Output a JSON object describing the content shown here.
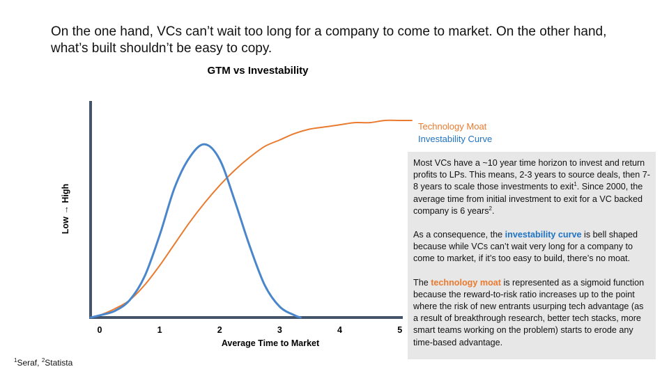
{
  "headline": "On the one hand, VCs can’t wait too long for a company to come to market. On the other hand, what’s built shouldn’t be easy to copy.",
  "chart_data": {
    "type": "line",
    "title": "GTM vs Investability",
    "xlabel": "Average Time to Market",
    "ylabel": "Low → High",
    "xlim": [
      -0.15,
      5.05
    ],
    "ylim": [
      0,
      1
    ],
    "xticks": [
      0,
      1,
      2,
      3,
      4,
      5
    ],
    "grid": false,
    "legend_position": "right",
    "series": [
      {
        "name": "Technology Moat",
        "shape": "sigmoid",
        "color": "#ea7a2e",
        "x": [
          -0.15,
          0.0,
          0.25,
          0.5,
          0.75,
          1.0,
          1.25,
          1.5,
          1.75,
          2.0,
          2.25,
          2.5,
          2.75,
          3.0,
          3.25,
          3.5,
          3.75,
          4.0,
          4.25,
          4.5,
          4.75,
          5.0,
          5.2
        ],
        "y": [
          0.0,
          0.01,
          0.04,
          0.08,
          0.15,
          0.24,
          0.34,
          0.44,
          0.53,
          0.61,
          0.68,
          0.74,
          0.79,
          0.82,
          0.85,
          0.87,
          0.88,
          0.89,
          0.9,
          0.9,
          0.91,
          0.91,
          0.91
        ]
      },
      {
        "name": "Investability Curve",
        "shape": "bell",
        "color": "#4a86cc",
        "x": [
          -0.15,
          0.0,
          0.25,
          0.5,
          0.75,
          1.0,
          1.25,
          1.5,
          1.75,
          2.0,
          2.25,
          2.5,
          2.75,
          3.0,
          3.25,
          3.35
        ],
        "y": [
          0.0,
          0.01,
          0.03,
          0.08,
          0.19,
          0.38,
          0.6,
          0.74,
          0.8,
          0.73,
          0.54,
          0.33,
          0.15,
          0.05,
          0.01,
          0.0
        ]
      }
    ]
  },
  "notes": {
    "p1_a": "Most VCs have a ~10 year time horizon to invest and return profits to LPs. This means, 2-3 years to source deals, then 7-8 years to scale those investments to exit",
    "p1_sup1": "1",
    "p1_b": ". Since 2000, the average time from initial investment to exit for a VC backed company is 6 years",
    "p1_sup2": "2",
    "p1_c": ".",
    "p2_a": "As a consequence, the ",
    "p2_hl": "investability curve",
    "p2_b": " is bell shaped because while VCs can’t wait very long for a company to come to market, if it’s too easy to build, there’s no moat.",
    "p3_a": "The ",
    "p3_hl": "technology moat",
    "p3_b": " is represented as a sigmoid function because the reward-to-risk ratio increases up to the point where the risk of new entrants usurping tech advantage (as a result of breakthrough research, better tech stacks, more smart teams working on the problem) starts to erode any time-based advantage."
  },
  "footnote": {
    "sup1": "1",
    "src1": "Seraf, ",
    "sup2": "2",
    "src2": "Statista"
  }
}
